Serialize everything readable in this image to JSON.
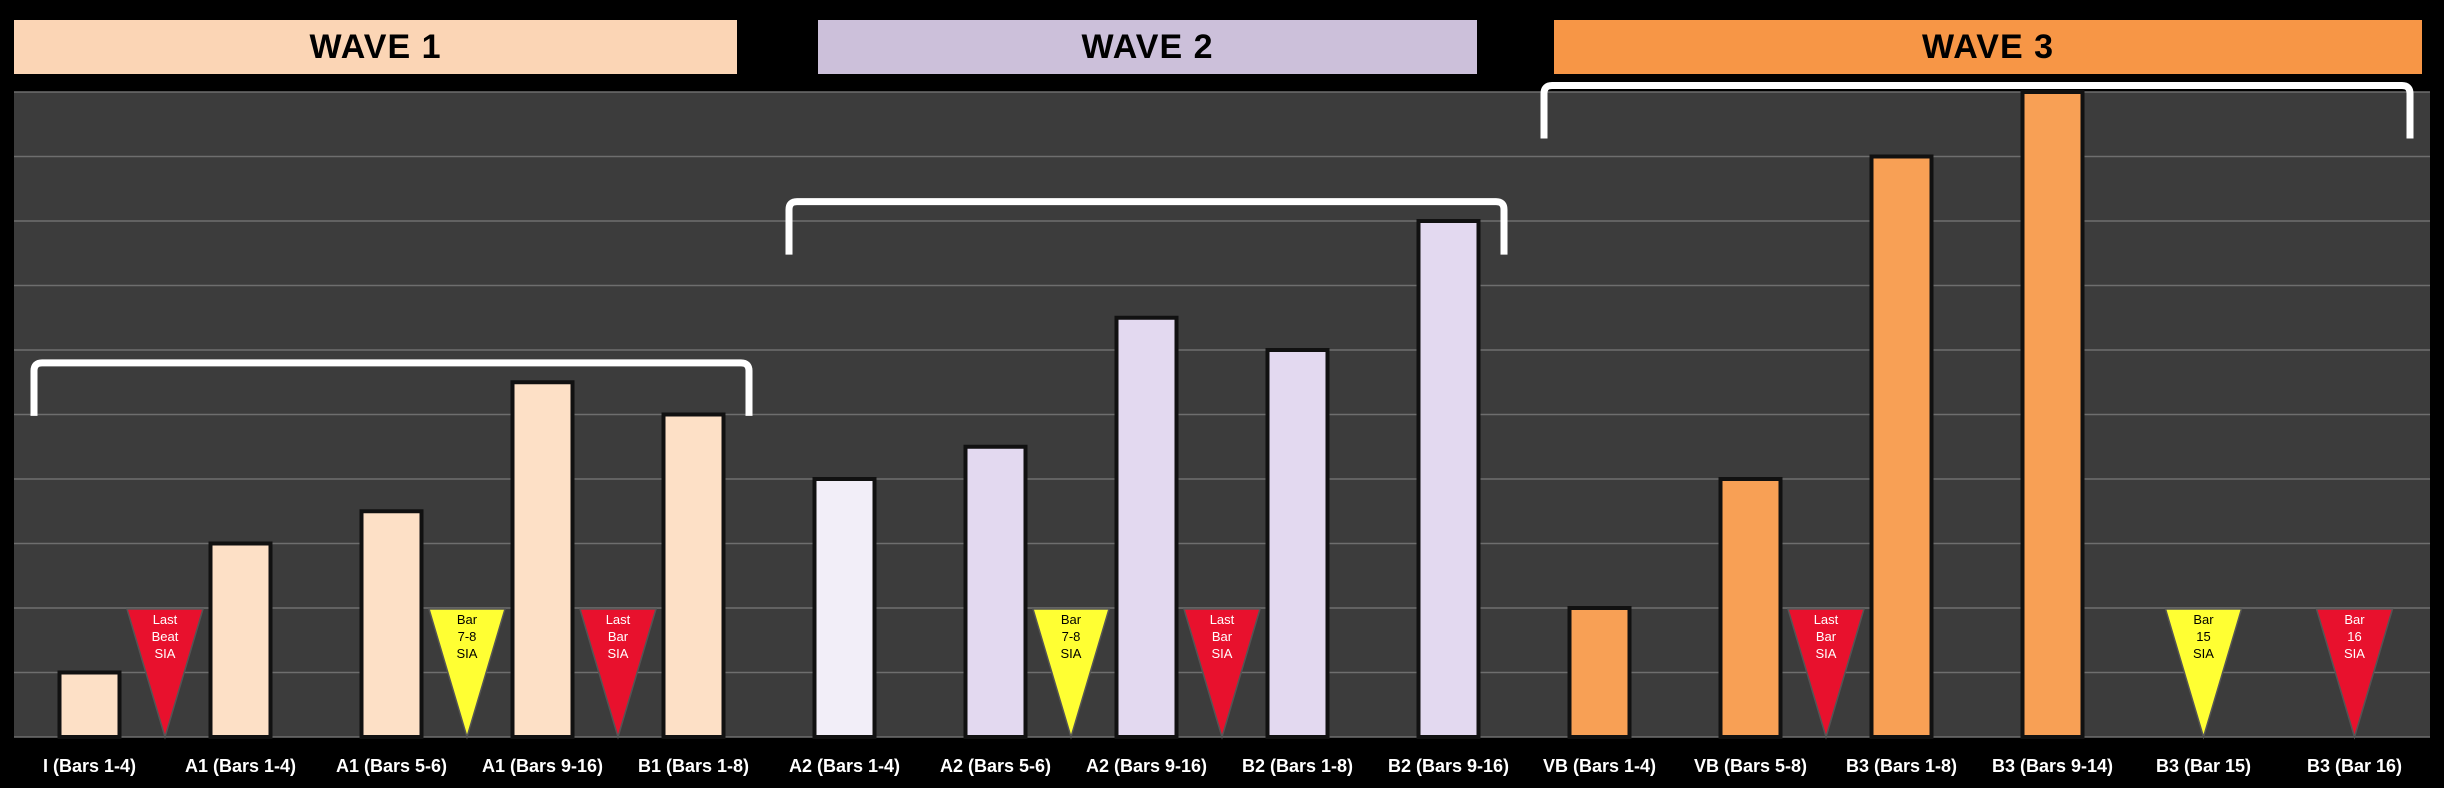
{
  "waves": [
    {
      "label": "WAVE 1",
      "color": "#FBD5B5"
    },
    {
      "label": "WAVE 2",
      "color": "#CCC0DA"
    },
    {
      "label": "WAVE 3",
      "color": "#F79646"
    }
  ],
  "colors": {
    "background": "#3C3C3C",
    "grid": "#6E6E6E",
    "wave1_bar": "#FDE0C6",
    "wave2_bar_light": "#F2EEF8",
    "wave2_bar": "#E3D9F0",
    "wave3_bar": "#F8A055",
    "sia_red": "#E8112D",
    "sia_yellow": "#FFFF33"
  },
  "chart_data": {
    "type": "bar",
    "grid": true,
    "ylim": [
      0,
      10
    ],
    "categories": [
      "I (Bars 1-4)",
      "A1 (Bars 1-4)",
      "A1 (Bars 5-6)",
      "A1 (Bars 9-16)",
      "B1 (Bars 1-8)",
      "A2  (Bars 1-4)",
      "A2 (Bars 5-6)",
      "A2 (Bars 9-16)",
      "B2  (Bars 1-8)",
      "B2  (Bars 9-16)",
      "VB (Bars 1-4)",
      "VB  (Bars 5-8)",
      "B3 (Bars 1-8)",
      "B3  (Bars 9-14)",
      "B3  (Bar 15)",
      "B3  (Bar 16)"
    ],
    "values": [
      1,
      3,
      3.5,
      5.5,
      5,
      4,
      4.5,
      6.5,
      6,
      8,
      2,
      4,
      9,
      10,
      0,
      0
    ],
    "bar_wave": [
      1,
      1,
      1,
      1,
      1,
      2,
      2,
      2,
      2,
      2,
      3,
      3,
      3,
      3,
      3,
      3
    ],
    "markers": [
      {
        "after_index": 0,
        "text": [
          "Last",
          "Beat",
          "SIA"
        ],
        "color": "red"
      },
      {
        "after_index": 2,
        "text": [
          "Bar",
          "7-8",
          "SIA"
        ],
        "color": "yellow"
      },
      {
        "after_index": 3,
        "text": [
          "Last",
          "Bar",
          "SIA"
        ],
        "color": "red"
      },
      {
        "after_index": 6,
        "text": [
          "Bar",
          "7-8",
          "SIA"
        ],
        "color": "yellow"
      },
      {
        "after_index": 7,
        "text": [
          "Last",
          "Bar",
          "SIA"
        ],
        "color": "red"
      },
      {
        "after_index": 11,
        "text": [
          "Last",
          "Bar",
          "SIA"
        ],
        "color": "red"
      },
      {
        "at_index": 14,
        "text": [
          "Bar",
          "15",
          "SIA"
        ],
        "color": "yellow"
      },
      {
        "at_index": 15,
        "text": [
          "Bar",
          "16",
          "SIA"
        ],
        "color": "red"
      }
    ],
    "brackets": [
      {
        "from_index": 0,
        "to_index": 4,
        "level": 5.8
      },
      {
        "from_index": 5,
        "to_index": 9,
        "level": 8.3
      },
      {
        "from_index": 10,
        "to_index": 15,
        "level": 10.1
      }
    ]
  }
}
